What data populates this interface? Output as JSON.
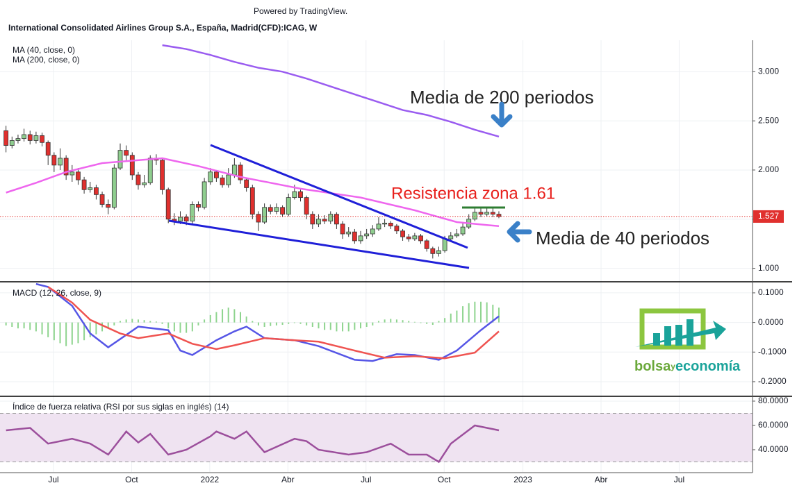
{
  "header": {
    "powered": "Powered by TradingView.",
    "title": "International Consolidated Airlines Group S.A., España, Madrid(CFD):ICAG, W"
  },
  "logo": {
    "part1": "bolsa",
    "part2": "y",
    "part3": "economía"
  },
  "chart_data": [
    {
      "type": "candlestick",
      "open": [
        2.4,
        2.25,
        2.3,
        2.32,
        2.36,
        2.3,
        2.35,
        2.28,
        2.15,
        2.05,
        2.12,
        1.95,
        1.98,
        1.9,
        1.8,
        1.82,
        1.75,
        1.65,
        1.62,
        2.02,
        2.2,
        2.15,
        1.95,
        1.85,
        1.87,
        2.12,
        2.1,
        1.8,
        1.5,
        1.48,
        1.52,
        1.48,
        1.65,
        1.62,
        1.88,
        1.98,
        1.92,
        1.85,
        1.95,
        2.05,
        1.9,
        1.82,
        1.55,
        1.47,
        1.62,
        1.58,
        1.62,
        1.55,
        1.72,
        1.78,
        1.72,
        1.55,
        1.45,
        1.5,
        1.48,
        1.55,
        1.45,
        1.35,
        1.37,
        1.28,
        1.33,
        1.35,
        1.4,
        1.45,
        1.46,
        1.43,
        1.38,
        1.32,
        1.3,
        1.33,
        1.28,
        1.2,
        1.15,
        1.18,
        1.3,
        1.33,
        1.35,
        1.42,
        1.5,
        1.57,
        1.55,
        1.57,
        1.55
      ],
      "high": [
        2.45,
        2.34,
        2.36,
        2.42,
        2.4,
        2.39,
        2.38,
        2.3,
        2.18,
        2.22,
        2.15,
        2.05,
        2.02,
        1.93,
        1.88,
        1.85,
        1.78,
        1.7,
        2.06,
        2.27,
        2.25,
        2.18,
        1.98,
        1.95,
        2.15,
        2.16,
        2.12,
        1.82,
        1.56,
        1.58,
        1.55,
        1.68,
        1.68,
        1.92,
        2.02,
        2.0,
        1.95,
        2.02,
        2.12,
        2.08,
        1.92,
        1.85,
        1.58,
        1.66,
        1.65,
        1.66,
        1.64,
        1.76,
        1.85,
        1.8,
        1.74,
        1.58,
        1.55,
        1.54,
        1.58,
        1.57,
        1.48,
        1.42,
        1.4,
        1.38,
        1.4,
        1.44,
        1.52,
        1.5,
        1.48,
        1.45,
        1.4,
        1.35,
        1.36,
        1.35,
        1.3,
        1.22,
        1.22,
        1.33,
        1.37,
        1.4,
        1.46,
        1.55,
        1.62,
        1.62,
        1.61,
        1.61,
        1.58
      ],
      "low": [
        2.18,
        2.22,
        2.27,
        2.29,
        2.26,
        2.27,
        2.24,
        2.05,
        1.98,
        2.0,
        1.9,
        1.88,
        1.85,
        1.76,
        1.77,
        1.7,
        1.62,
        1.55,
        1.6,
        2.0,
        2.1,
        1.9,
        1.8,
        1.82,
        1.85,
        2.05,
        1.75,
        1.46,
        1.44,
        1.45,
        1.44,
        1.44,
        1.58,
        1.6,
        1.85,
        1.88,
        1.82,
        1.82,
        1.92,
        1.86,
        1.78,
        1.5,
        1.38,
        1.45,
        1.55,
        1.55,
        1.52,
        1.53,
        1.7,
        1.68,
        1.5,
        1.4,
        1.42,
        1.45,
        1.45,
        1.4,
        1.3,
        1.32,
        1.25,
        1.25,
        1.3,
        1.32,
        1.38,
        1.42,
        1.4,
        1.35,
        1.28,
        1.27,
        1.28,
        1.25,
        1.17,
        1.1,
        1.12,
        1.16,
        1.28,
        1.31,
        1.33,
        1.4,
        1.48,
        1.52,
        1.53,
        1.52,
        1.51
      ],
      "close": [
        2.25,
        2.3,
        2.32,
        2.36,
        2.3,
        2.35,
        2.28,
        2.15,
        2.05,
        2.12,
        1.95,
        1.98,
        1.9,
        1.8,
        1.82,
        1.75,
        1.65,
        1.62,
        2.02,
        2.2,
        2.15,
        1.95,
        1.85,
        1.87,
        2.12,
        2.1,
        1.8,
        1.5,
        1.48,
        1.52,
        1.48,
        1.65,
        1.62,
        1.88,
        1.98,
        1.92,
        1.85,
        1.95,
        2.05,
        1.9,
        1.82,
        1.55,
        1.47,
        1.62,
        1.58,
        1.62,
        1.55,
        1.72,
        1.78,
        1.72,
        1.55,
        1.45,
        1.5,
        1.48,
        1.55,
        1.45,
        1.35,
        1.37,
        1.28,
        1.33,
        1.35,
        1.4,
        1.45,
        1.46,
        1.43,
        1.38,
        1.32,
        1.3,
        1.33,
        1.28,
        1.2,
        1.15,
        1.18,
        1.3,
        1.33,
        1.35,
        1.42,
        1.5,
        1.57,
        1.55,
        1.57,
        1.55,
        1.527
      ],
      "up_color": "#8fce8f",
      "down_color": "#e0302e",
      "series": [
        {
          "name": "MA (40, close, 0)",
          "color": "#ee66ee",
          "x": [
            0,
            5,
            10,
            16,
            26,
            32,
            39,
            49,
            59,
            68,
            75,
            80,
            82
          ],
          "values": [
            1.77,
            1.87,
            1.98,
            2.07,
            2.12,
            2.04,
            1.93,
            1.81,
            1.72,
            1.59,
            1.47,
            1.44,
            1.43
          ]
        },
        {
          "name": "MA (200, close, 0)",
          "color": "#9a5cf0",
          "x": [
            26,
            30,
            34,
            38,
            42,
            46,
            50,
            54,
            58,
            62,
            66,
            70,
            74,
            78,
            82
          ],
          "values": [
            3.27,
            3.23,
            3.17,
            3.1,
            3.04,
            3.0,
            2.93,
            2.85,
            2.77,
            2.69,
            2.61,
            2.56,
            2.49,
            2.41,
            2.34
          ]
        }
      ],
      "last_price": 1.527,
      "ylim": [
        0.87,
        3.32
      ],
      "yticks": [
        {
          "value": 1,
          "label": "1.000"
        },
        {
          "value": 1.5,
          "label": "1.500"
        },
        {
          "value": 2,
          "label": "2.000"
        },
        {
          "value": 2.5,
          "label": "2.500"
        },
        {
          "value": 3,
          "label": "3.000"
        }
      ],
      "xlim": [
        -1,
        124.2
      ],
      "xticks": [
        {
          "value": 7.9,
          "label": "Jul"
        },
        {
          "value": 20.9,
          "label": "Oct"
        },
        {
          "value": 33.9,
          "label": "2022"
        },
        {
          "value": 46.9,
          "label": "Abr"
        },
        {
          "value": 59.9,
          "label": "Jul"
        },
        {
          "value": 72.9,
          "label": "Oct"
        },
        {
          "value": 86,
          "label": "2023"
        },
        {
          "value": 99,
          "label": "Abr"
        },
        {
          "value": 112,
          "label": "Jul"
        }
      ],
      "annotations": [
        "Media de 200 periodos",
        "Resistencia zona 1.61",
        "Media de 40 periodos"
      ]
    },
    {
      "type": "macd",
      "title": "MACD (12, 26, close, 9)",
      "ylim": [
        -0.247,
        0.135
      ],
      "yticks": [
        {
          "value": 0.1,
          "label": "0.1000"
        },
        {
          "value": 0,
          "label": "0.0000"
        },
        {
          "value": -0.1,
          "label": "-0.1000"
        },
        {
          "value": -0.2,
          "label": "-0.2000"
        }
      ],
      "histogram": {
        "color": "#8ed48e",
        "values": [
          -0.01,
          -0.015,
          -0.02,
          -0.02,
          -0.025,
          -0.03,
          -0.04,
          -0.05,
          -0.06,
          -0.07,
          -0.08,
          -0.075,
          -0.07,
          -0.06,
          -0.05,
          -0.04,
          -0.03,
          -0.02,
          -0.01,
          0.005,
          0.01,
          0.012,
          0.01,
          0.008,
          0.005,
          0.003,
          -0.005,
          -0.02,
          -0.03,
          -0.035,
          -0.035,
          -0.03,
          -0.01,
          0.01,
          0.025,
          0.035,
          0.045,
          0.05,
          0.045,
          0.035,
          0.02,
          0.005,
          -0.01,
          -0.015,
          -0.012,
          -0.01,
          -0.008,
          -0.005,
          -0.002,
          -0.005,
          -0.01,
          -0.015,
          -0.02,
          -0.025,
          -0.025,
          -0.03,
          -0.03,
          -0.03,
          -0.025,
          -0.02,
          -0.015,
          -0.01,
          0.005,
          0.01,
          0.012,
          0.01,
          0.008,
          0.005,
          0.002,
          -0.002,
          -0.005,
          -0.008,
          0.005,
          0.015,
          0.03,
          0.04,
          0.055,
          0.065,
          0.07,
          0.07,
          0.068,
          0.06,
          0.05
        ]
      },
      "series": [
        {
          "color": "#5656e6",
          "x": [
            5,
            7,
            11,
            14,
            17,
            22,
            27,
            29,
            31,
            35,
            38,
            40,
            43,
            48,
            52,
            58,
            61,
            65,
            68,
            72,
            75,
            79,
            82
          ],
          "values": [
            0.13,
            0.12,
            0.056,
            -0.037,
            -0.084,
            -0.014,
            -0.026,
            -0.095,
            -0.11,
            -0.06,
            -0.03,
            -0.014,
            -0.053,
            -0.06,
            -0.08,
            -0.126,
            -0.13,
            -0.107,
            -0.11,
            -0.126,
            -0.095,
            -0.026,
            0.021
          ]
        },
        {
          "color": "#ef5350",
          "x": [
            7,
            11,
            14,
            19,
            22,
            27,
            31,
            35,
            38,
            43,
            48,
            52,
            58,
            63,
            68,
            73,
            78,
            82
          ],
          "values": [
            0.12,
            0.067,
            0.009,
            -0.037,
            -0.053,
            -0.037,
            -0.072,
            -0.09,
            -0.077,
            -0.053,
            -0.06,
            -0.065,
            -0.095,
            -0.119,
            -0.114,
            -0.121,
            -0.102,
            -0.03
          ]
        }
      ]
    },
    {
      "type": "line",
      "title": "Índice de fuerza relativa (RSI por sus siglas en inglés) (14)",
      "ylim": [
        21.7,
        83.4
      ],
      "yticks": [
        {
          "value": 40,
          "label": "40.0000"
        },
        {
          "value": 60,
          "label": "60.0000"
        },
        {
          "value": 80,
          "label": "80.0000"
        }
      ],
      "bands": [
        30,
        70
      ],
      "series": [
        {
          "color": "#9c4f9c",
          "x": [
            0,
            4,
            7,
            11,
            14,
            17,
            20,
            22,
            24,
            27,
            30,
            34,
            35,
            38,
            40,
            43,
            48,
            50,
            52,
            57,
            60,
            64,
            67,
            70,
            72,
            74,
            78,
            80,
            82
          ],
          "values": [
            56,
            58,
            45,
            49,
            45,
            36,
            55,
            46,
            53,
            36,
            40,
            51,
            55,
            49,
            55,
            38,
            49,
            47,
            40,
            36,
            38,
            45,
            36,
            36,
            30,
            45,
            60,
            58,
            56
          ]
        }
      ]
    }
  ]
}
